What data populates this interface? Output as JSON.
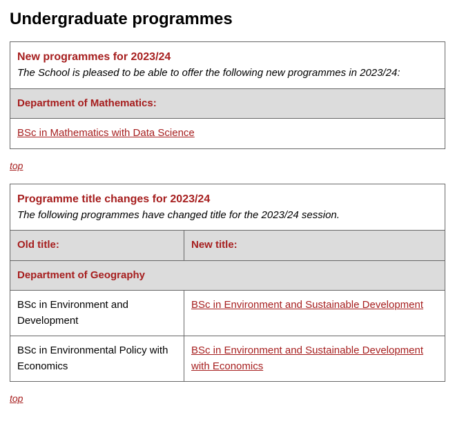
{
  "page_title": "Undergraduate programmes",
  "new_programmes": {
    "heading": "New programmes for 2023/24",
    "subheading": "The School is pleased to be able to offer the following new programmes in 2023/24:",
    "department_label": "Department of Mathematics:",
    "items": [
      {
        "title": "BSc in Mathematics with Data Science"
      }
    ]
  },
  "title_changes": {
    "heading": "Programme title changes for 2023/24",
    "subheading": "The following programmes have changed title for the 2023/24 session.",
    "old_col": "Old title:",
    "new_col": "New title:",
    "department_label": "Department of Geography",
    "rows": [
      {
        "old": "BSc in Environment and Development",
        "new": "BSc in Environment and Sustainable Development"
      },
      {
        "old": "BSc in Environmental Policy with Economics",
        "new": "BSc in Environment and Sustainable Development with Economics"
      }
    ]
  },
  "top_link_label": "top",
  "colors": {
    "accent": "#a61e1e",
    "header_bg": "#dcdcdc",
    "border": "#666666",
    "text": "#000000",
    "background": "#ffffff"
  }
}
